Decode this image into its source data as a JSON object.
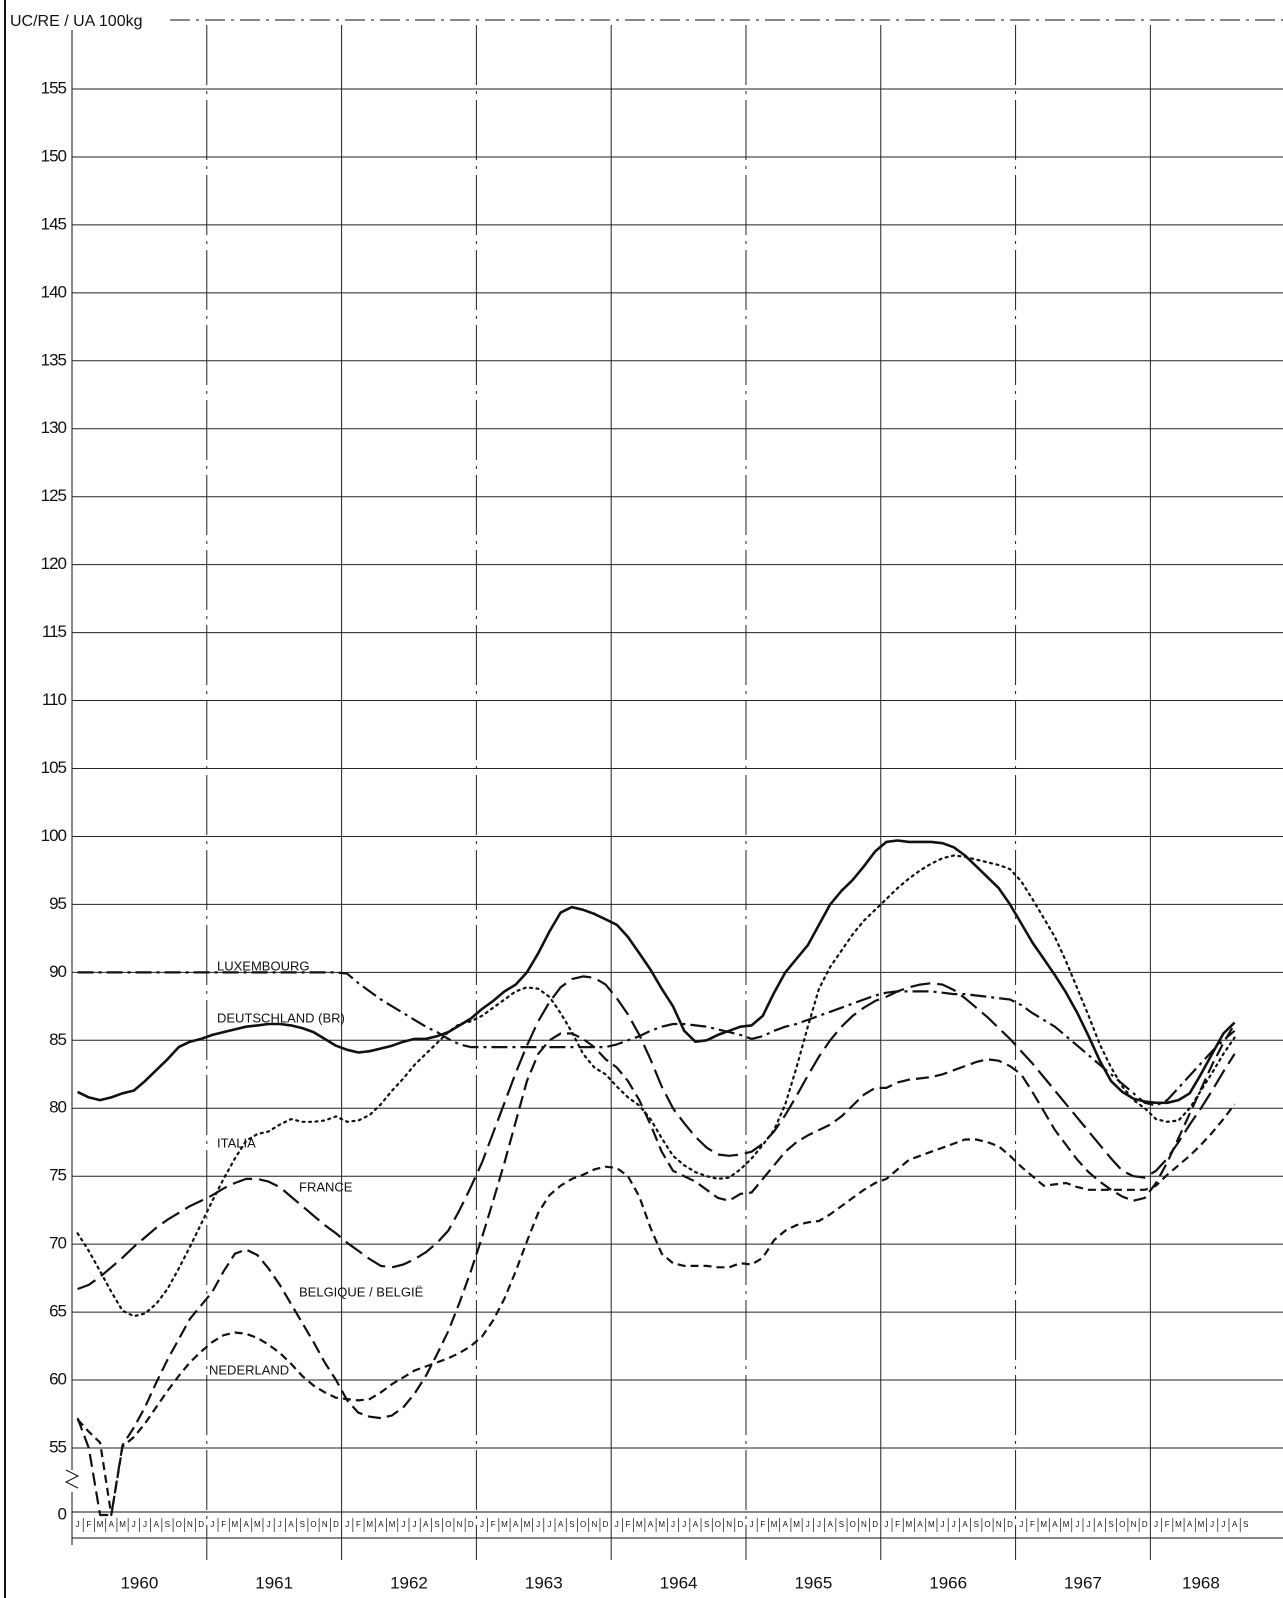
{
  "chart_data": {
    "type": "line",
    "y_label": "UC/RE / UA 100kg",
    "categories": [
      "J",
      "F",
      "M",
      "A",
      "M",
      "J",
      "J",
      "A",
      "S",
      "O",
      "N",
      "D",
      "J",
      "F",
      "M",
      "A",
      "M",
      "J",
      "J",
      "A",
      "S",
      "O",
      "N",
      "D",
      "J",
      "F",
      "M",
      "A",
      "M",
      "J",
      "J",
      "A",
      "S",
      "O",
      "N",
      "D",
      "J",
      "F",
      "M",
      "A",
      "M",
      "J",
      "J",
      "A",
      "S",
      "O",
      "N",
      "D",
      "J",
      "F",
      "M",
      "A",
      "M",
      "J",
      "J",
      "A",
      "S",
      "O",
      "N",
      "D",
      "J",
      "F",
      "M",
      "A",
      "M",
      "J",
      "J",
      "A",
      "S",
      "O",
      "N",
      "D",
      "J",
      "F",
      "M",
      "A",
      "M",
      "J",
      "J",
      "A",
      "S",
      "O",
      "N",
      "D",
      "J",
      "F",
      "M",
      "A",
      "M",
      "J",
      "J",
      "A",
      "S",
      "O",
      "N",
      "D",
      "J",
      "F",
      "M",
      "A",
      "M",
      "J",
      "J",
      "A",
      "S"
    ],
    "year_labels": [
      "1960",
      "1961",
      "1962",
      "1963",
      "1964",
      "1965",
      "1966",
      "1967",
      "1968"
    ],
    "ylim": [
      55,
      155
    ],
    "yticks": [
      0,
      55,
      60,
      65,
      70,
      75,
      80,
      85,
      90,
      95,
      100,
      105,
      110,
      115,
      120,
      125,
      130,
      135,
      140,
      145,
      150,
      155
    ],
    "axis_break": true,
    "grid": true,
    "series": [
      {
        "name": "LUXEMBOURG",
        "color": "#111111",
        "style": "dash-dot",
        "values": [
          90,
          90,
          90,
          90,
          90,
          90,
          90,
          90,
          90,
          90,
          90,
          90,
          90,
          90,
          90,
          90,
          90,
          90,
          90,
          90,
          90,
          90,
          90,
          90,
          89.9,
          89.2,
          88.6,
          88,
          87.5,
          87,
          86.5,
          86,
          85.6,
          85.1,
          84.7,
          84.5,
          84.5,
          84.5,
          84.5,
          84.5,
          84.5,
          84.5,
          84.5,
          84.5,
          84.5,
          84.5,
          84.5,
          84.5,
          84.7,
          85,
          85.3,
          85.7,
          86,
          86.2,
          86.2,
          86.1,
          86,
          85.8,
          85.6,
          85.4,
          85.1,
          85.3,
          85.7,
          86,
          86.2,
          86.5,
          86.8,
          87.1,
          87.4,
          87.7,
          88,
          88.3,
          88.5,
          88.6,
          88.6,
          88.6,
          88.6,
          88.5,
          88.4,
          88.4,
          88.3,
          88.2,
          88.1,
          88,
          87.6,
          87,
          86.5,
          86,
          85.3,
          84.6,
          83.9,
          83.2,
          82.5,
          81.8,
          81.1,
          80.4,
          80.2,
          80.6,
          81.5,
          82.4,
          83.3,
          84.2,
          85,
          85.7,
          null
        ]
      },
      {
        "name": "DEUTSCHLAND (BR)",
        "color": "#111111",
        "style": "solid",
        "values": [
          81.2,
          80.8,
          80.6,
          80.8,
          81.1,
          81.3,
          82,
          82.8,
          83.6,
          84.5,
          84.9,
          85.1,
          85.4,
          85.6,
          85.8,
          86,
          86.1,
          86.2,
          86.2,
          86.1,
          85.9,
          85.6,
          85.1,
          84.6,
          84.3,
          84.1,
          84.2,
          84.4,
          84.6,
          84.9,
          85.1,
          85.1,
          85.3,
          85.6,
          86.1,
          86.6,
          87.3,
          87.9,
          88.6,
          89.1,
          90,
          91.4,
          93,
          94.4,
          94.8,
          94.6,
          94.3,
          93.9,
          93.5,
          92.6,
          91.4,
          90.2,
          88.8,
          87.5,
          85.7,
          84.9,
          85,
          85.4,
          85.7,
          86,
          86.1,
          86.8,
          88.5,
          90,
          91,
          92,
          93.5,
          95,
          96,
          96.8,
          97.8,
          98.9,
          99.6,
          99.7,
          99.6,
          99.6,
          99.6,
          99.5,
          99.2,
          98.6,
          97.8,
          97,
          96.2,
          95,
          93.6,
          92.2,
          91,
          89.8,
          88.5,
          87,
          85.3,
          83.5,
          82,
          81.2,
          80.7,
          80.5,
          80.4,
          80.4,
          80.6,
          81.1,
          82.5,
          84,
          85.5,
          86.3,
          null
        ]
      },
      {
        "name": "ITALIA",
        "color": "#111111",
        "style": "dotted",
        "values": [
          70.8,
          69.5,
          68,
          66.5,
          65.1,
          64.7,
          64.9,
          65.6,
          66.7,
          68.2,
          69.8,
          71.5,
          73.2,
          74.8,
          76.3,
          77.6,
          78.1,
          78.3,
          78.8,
          79.2,
          79,
          79,
          79.1,
          79.4,
          79,
          79.1,
          79.5,
          80.3,
          81.3,
          82.2,
          83.2,
          84,
          84.8,
          85.6,
          86.2,
          86.4,
          86.8,
          87.4,
          88,
          88.6,
          88.9,
          88.8,
          88.2,
          87,
          85.6,
          84,
          83,
          82.5,
          81.6,
          80.8,
          80.2,
          79.2,
          77.8,
          76.5,
          75.8,
          75.3,
          75,
          74.8,
          74.9,
          75.5,
          76.3,
          77.3,
          78.4,
          80.3,
          83,
          86,
          88.8,
          90.4,
          91.6,
          92.8,
          93.8,
          94.6,
          95.4,
          96.2,
          96.9,
          97.5,
          98,
          98.4,
          98.6,
          98.5,
          98.3,
          98.1,
          97.9,
          97.6,
          96.7,
          95.4,
          94,
          92.6,
          90.8,
          88.8,
          86.8,
          84.7,
          83,
          81.6,
          80.6,
          80,
          79.2,
          79,
          79.1,
          80,
          81.3,
          82.6,
          84,
          85.2,
          null
        ]
      },
      {
        "name": "FRANCE",
        "color": "#111111",
        "style": "long-dash",
        "values": [
          66.7,
          67,
          67.6,
          68.3,
          69,
          69.8,
          70.5,
          71.2,
          71.8,
          72.3,
          72.8,
          73.2,
          73.6,
          74.1,
          74.5,
          74.8,
          74.8,
          74.6,
          74.2,
          73.5,
          72.8,
          72.1,
          71.4,
          70.8,
          70.1,
          69.5,
          68.9,
          68.4,
          68.3,
          68.5,
          68.9,
          69.4,
          70.1,
          71,
          72.5,
          74.2,
          76,
          78.2,
          80.4,
          82.6,
          84.6,
          86.4,
          87.8,
          88.9,
          89.5,
          89.7,
          89.6,
          89.1,
          88.1,
          86.9,
          85.4,
          83.6,
          81.6,
          80,
          78.9,
          77.9,
          77.1,
          76.6,
          76.5,
          76.6,
          76.8,
          77.4,
          78.3,
          79.5,
          80.9,
          82.4,
          83.8,
          85,
          86,
          86.8,
          87.4,
          87.9,
          88.2,
          88.6,
          88.9,
          89.1,
          89.2,
          89.1,
          88.7,
          88.1,
          87.4,
          86.7,
          85.9,
          85.1,
          84.2,
          83.3,
          82.3,
          81.3,
          80.3,
          79.3,
          78.3,
          77.3,
          76.3,
          75.4,
          75,
          74.9,
          75.4,
          76.3,
          77.5,
          78.8,
          80,
          81.3,
          82.7,
          84,
          null
        ]
      },
      {
        "name": "BELGIQUE / BELGIË",
        "color": "#111111",
        "style": "medium-dash",
        "values": [
          57.2,
          55,
          54,
          54.3,
          55.2,
          56.5,
          58,
          59.8,
          61.5,
          63,
          64.5,
          65.5,
          66.5,
          68,
          69.3,
          69.6,
          69.2,
          68.2,
          67,
          65.6,
          64.2,
          62.8,
          61.3,
          60,
          58.5,
          57.6,
          57.3,
          57.2,
          57.4,
          58,
          59,
          60.3,
          61.9,
          63.6,
          65.7,
          68,
          70.5,
          73.2,
          76,
          79,
          82,
          84,
          85,
          85.5,
          85.5,
          85.1,
          84.5,
          83.6,
          83,
          82,
          80.6,
          78.8,
          76.8,
          75.4,
          75,
          74.6,
          74,
          73.4,
          73.2,
          73.7,
          73.8,
          74.8,
          75.8,
          76.8,
          77.5,
          78,
          78.4,
          78.8,
          79.4,
          80.2,
          81,
          81.5,
          81.5,
          81.9,
          82.1,
          82.2,
          82.3,
          82.5,
          82.8,
          83.1,
          83.4,
          83.6,
          83.5,
          83.1,
          82.5,
          81.2,
          79.8,
          78.4,
          77.3,
          76.2,
          75.3,
          74.6,
          74,
          73.5,
          73.2,
          73.4,
          74.5,
          76,
          77.8,
          79.6,
          81.4,
          83.2,
          84.8,
          86.2,
          null
        ]
      },
      {
        "name": "NEDERLAND",
        "color": "#111111",
        "style": "short-dash",
        "values": [
          57.1,
          56.2,
          55.4,
          54.9,
          55.1,
          55.8,
          56.8,
          58,
          59.2,
          60.3,
          61.3,
          62.1,
          62.8,
          63.3,
          63.5,
          63.4,
          63.1,
          62.6,
          62,
          61.2,
          60.3,
          59.6,
          59.1,
          58.7,
          58.6,
          58.5,
          58.6,
          59.1,
          59.7,
          60.2,
          60.7,
          61,
          61.3,
          61.6,
          62,
          62.5,
          63.2,
          64.4,
          66,
          68,
          70.2,
          72.3,
          73.6,
          74.3,
          74.8,
          75.1,
          75.5,
          75.7,
          75.6,
          75,
          73.5,
          71.2,
          69.3,
          68.6,
          68.4,
          68.4,
          68.4,
          68.3,
          68.3,
          68.6,
          68.5,
          69,
          70.3,
          71,
          71.4,
          71.6,
          71.7,
          72.2,
          72.8,
          73.4,
          74,
          74.5,
          74.8,
          75.5,
          76.2,
          76.5,
          76.8,
          77.1,
          77.4,
          77.7,
          77.7,
          77.5,
          77.2,
          76.5,
          75.7,
          75,
          74.3,
          74.4,
          74.5,
          74.2,
          74,
          74,
          74,
          74,
          74,
          74,
          74.3,
          75.1,
          75.8,
          76.5,
          77.3,
          78.2,
          79.2,
          80.3,
          null
        ]
      }
    ]
  }
}
